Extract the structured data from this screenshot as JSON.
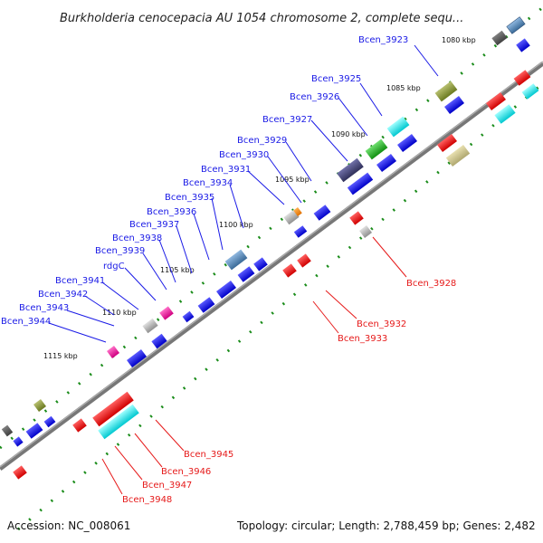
{
  "title": "Burkholderia cenocepacia AU 1054 chromosome 2, complete sequ...",
  "footer": {
    "accession": "Accession: NC_008061",
    "summary": "Topology: circular; Length: 2,788,459 bp; Genes: 2,482"
  },
  "ticks": [
    "1080 kbp",
    "1085 kbp",
    "1090 kbp",
    "1095 kbp",
    "1100 kbp",
    "1105 kbp",
    "1110 kbp",
    "1115 kbp"
  ],
  "upper_labels": [
    "Bcen_3923",
    "Bcen_3925",
    "Bcen_3926",
    "Bcen_3927",
    "Bcen_3929",
    "Bcen_3930",
    "Bcen_3931",
    "Bcen_3934",
    "Bcen_3935",
    "Bcen_3936",
    "Bcen_3937",
    "Bcen_3938",
    "Bcen_3939",
    "rdgC",
    "Bcen_3941",
    "Bcen_3942",
    "Bcen_3943",
    "Bcen_3944"
  ],
  "lower_labels": [
    "Bcen_3928",
    "Bcen_3932",
    "Bcen_3933",
    "Bcen_3945",
    "Bcen_3946",
    "Bcen_3947",
    "Bcen_3948"
  ],
  "colors": {
    "forward_gene": "#1a1ae6",
    "reverse_gene": "#e61a1a",
    "upper_label": "#1a1ae6",
    "lower_label": "#e61a1a",
    "backbone": "#777777",
    "tick_dots": "#1a8c1a"
  }
}
